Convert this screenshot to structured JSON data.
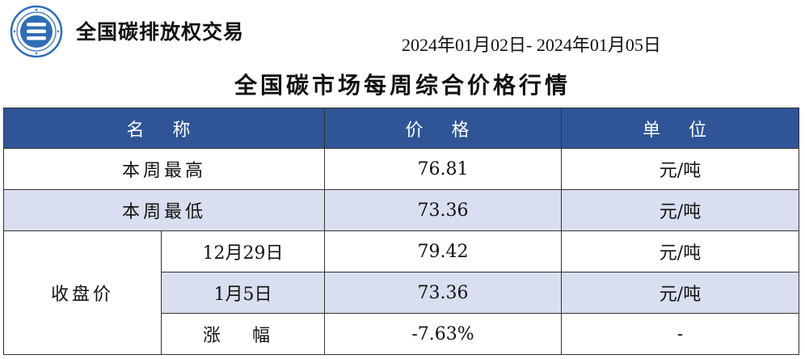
{
  "header": {
    "brand": "全国碳排放权交易",
    "date_range": "2024年01月02日- 2024年01月05日",
    "title": "全国碳市场每周综合价格行情"
  },
  "colors": {
    "header_bg": "#2f5597",
    "shade_bg": "#d9dff0",
    "logo_blue": "#2f6db5"
  },
  "logo": {
    "icon": "emissions-trading-logo-icon"
  },
  "table": {
    "headers": {
      "name": "名 称",
      "price": "价 格",
      "unit": "单 位"
    },
    "rows": [
      {
        "name": "本周最高",
        "price": "76.81",
        "unit": "元/吨"
      },
      {
        "name": "本周最低",
        "price": "73.36",
        "unit": "元/吨"
      }
    ],
    "close": {
      "label": "收盘价",
      "rows": [
        {
          "date": "12月29日",
          "price": "79.42",
          "unit": "元/吨"
        },
        {
          "date": "1月5日",
          "price": "73.36",
          "unit": "元/吨"
        },
        {
          "date": "涨 幅",
          "price": "-7.63%",
          "unit": "-"
        }
      ]
    }
  }
}
